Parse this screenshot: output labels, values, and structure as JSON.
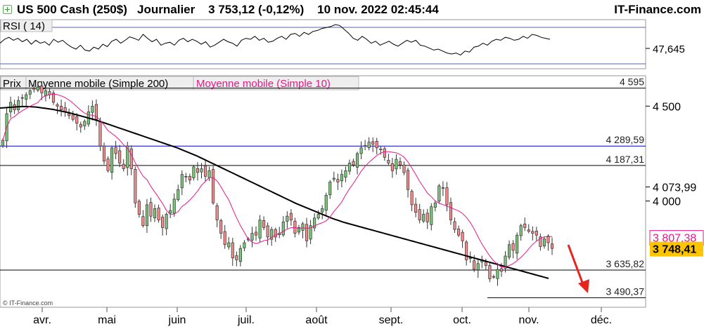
{
  "header": {
    "symbol": "US 500 Cash (250$)",
    "period": "Journalier",
    "quote": "3 753,12 (-0,12%)",
    "datetime": "10 nov. 2022 02:45:44",
    "brand": "IT-Finance.com"
  },
  "rsi": {
    "label": "RSI ( 14)",
    "value_label": "47,645"
  },
  "legend": {
    "price": "Prix",
    "ma200": "Moyenne mobile (Simple 200)",
    "ma10": "Moyenne mobile (Simple 10)"
  },
  "copyright": "© IT-Finance.com",
  "colors": {
    "up": "#7cc47a",
    "down": "#f48a8a",
    "ma10": "#e8178a",
    "ma200": "#000000",
    "resistance": "#0000cc",
    "last_price_bg": "#ffc400",
    "ma10_label_bg": "#ffffff",
    "arrow": "#e8231c"
  },
  "chart_data": {
    "type": "candlestick",
    "title": "US 500 Cash (250$)",
    "xlabel": "",
    "ylabel": "",
    "ylim": [
      3440,
      4660
    ],
    "x_ticks": [
      "avr.",
      "mai",
      "juin",
      "juil.",
      "août",
      "sept.",
      "oct.",
      "nov.",
      "déc."
    ],
    "y_ticks": [
      {
        "value": 4500,
        "label": "4 500"
      },
      {
        "value": 4000,
        "label": "4 000"
      }
    ],
    "levels": [
      {
        "value": 4595,
        "label": "4 595",
        "color": "#000000"
      },
      {
        "value": 4289.59,
        "label": "4 289,59",
        "color": "#0000cc"
      },
      {
        "value": 4187.31,
        "label": "4 187,31",
        "color": "#000000"
      },
      {
        "value": 3635.82,
        "label": "3 635,82",
        "color": "#000000"
      },
      {
        "value": 3490.37,
        "label": "3 490,37",
        "color": "#000000"
      }
    ],
    "value_labels": [
      {
        "value": 4073.99,
        "label": "4 073,99",
        "style": "ma200"
      },
      {
        "value": 3807.38,
        "label": "3 807,38",
        "style": "ma10"
      },
      {
        "value": 3748.41,
        "label": "3 748,41",
        "style": "last"
      }
    ],
    "rsi_values": [
      52,
      60,
      64,
      58,
      62,
      55,
      60,
      50,
      58,
      52,
      55,
      48,
      60,
      54,
      58,
      50,
      44,
      40,
      48,
      38,
      36,
      44,
      40,
      50,
      45,
      56,
      60,
      52,
      58,
      65,
      62,
      58,
      70,
      62,
      55,
      60,
      48,
      52,
      54,
      48,
      58,
      62,
      55,
      60,
      56,
      50,
      55,
      44,
      48,
      54,
      60,
      55,
      52,
      46,
      58,
      62,
      60,
      66,
      58,
      62,
      54,
      56,
      62,
      66,
      60,
      70,
      72,
      66,
      74,
      70,
      76,
      78,
      82,
      84,
      86,
      90,
      88,
      80,
      72,
      62,
      58,
      66,
      60,
      52,
      56,
      48,
      52,
      56,
      50,
      46,
      52,
      58,
      54,
      58,
      48,
      46,
      42,
      38,
      40,
      36,
      32,
      30,
      32,
      28,
      36,
      34,
      44,
      46,
      52,
      48,
      56,
      60,
      58,
      64,
      62,
      58,
      60,
      66,
      62,
      70,
      68,
      64,
      62,
      60
    ],
    "ma200": [
      4490,
      4491,
      4492,
      4493,
      4494,
      4495,
      4496,
      4497,
      4498,
      4498,
      4498,
      4497,
      4496,
      4495,
      4493,
      4491,
      4489,
      4487,
      4485,
      4483,
      4480,
      4477,
      4474,
      4471,
      4468,
      4465,
      4461,
      4457,
      4453,
      4449,
      4445,
      4441,
      4437,
      4433,
      4429,
      4425,
      4420,
      4415,
      4410,
      4405,
      4400,
      4395,
      4390,
      4385,
      4380,
      4375,
      4370,
      4365,
      4360,
      4355,
      4350,
      4345,
      4340,
      4335,
      4330,
      4325,
      4320,
      4315,
      4310,
      4305,
      4300,
      4295,
      4290,
      4285,
      4280,
      4274,
      4268,
      4262,
      4256,
      4250,
      4244,
      4238,
      4231,
      4224,
      4217,
      4210,
      4203,
      4196,
      4189,
      4182,
      4175,
      4168,
      4161,
      4154,
      4147,
      4140,
      4133,
      4126,
      4119,
      4112,
      4105,
      4098,
      4091,
      4084,
      4077,
      4070,
      4063,
      4056,
      4049,
      4042,
      4035,
      4028,
      4021,
      4014,
      4007,
      4000,
      3993,
      3986,
      3980,
      3974,
      3968,
      3962,
      3956,
      3950,
      3944,
      3938,
      3932,
      3926,
      3920,
      3914,
      3908,
      3903,
      3898,
      3893,
      3888,
      3884,
      3880,
      3876,
      3872,
      3868,
      3864,
      3860,
      3856,
      3852,
      3848,
      3844,
      3840,
      3836,
      3832,
      3828,
      3824,
      3820,
      3816,
      3812,
      3808,
      3804,
      3800,
      3796,
      3792,
      3788,
      3784,
      3780,
      3776,
      3772,
      3768,
      3764,
      3760,
      3756,
      3752,
      3748,
      3744,
      3740,
      3736,
      3732,
      3728,
      3724,
      3720,
      3716,
      3712,
      3708,
      3704,
      3700,
      3696,
      3692,
      3688,
      3684,
      3680,
      3676,
      3672,
      3668,
      3664,
      3660,
      3656,
      3652,
      3648,
      3644,
      3640,
      3636,
      3632,
      3628,
      3624,
      3620,
      3616,
      3612,
      3608,
      3604,
      3600,
      3596,
      3592
    ],
    "closes": [
      4320,
      4460,
      4520,
      4480,
      4530,
      4545,
      4560,
      4580,
      4590,
      4600,
      4570,
      4580,
      4560,
      4520,
      4500,
      4480,
      4470,
      4450,
      4430,
      4410,
      4390,
      4420,
      4470,
      4500,
      4430,
      4290,
      4210,
      4160,
      4280,
      4250,
      4200,
      4170,
      4290,
      4170,
      3990,
      3930,
      3870,
      3980,
      3920,
      3960,
      3900,
      3860,
      3930,
      3950,
      4010,
      4060,
      4140,
      4130,
      4110,
      4180,
      4150,
      4170,
      4130,
      4160,
      3990,
      3900,
      3830,
      3770,
      3780,
      3700,
      3690,
      3750,
      3780,
      3800,
      3830,
      3820,
      3900,
      3860,
      3810,
      3850,
      3810,
      3830,
      3890,
      3920,
      3900,
      3830,
      3860,
      3880,
      3790,
      3870,
      3910,
      3930,
      3960,
      4030,
      4100,
      4120,
      4100,
      4140,
      4160,
      4200,
      4190,
      4250,
      4280,
      4290,
      4310,
      4300,
      4280,
      4270,
      4230,
      4200,
      4160,
      4220,
      4190,
      4150,
      4060,
      3980,
      3940,
      3900,
      3930,
      3890,
      3970,
      3990,
      4080,
      4070,
      3980,
      3900,
      3850,
      3820,
      3790,
      3690,
      3700,
      3640,
      3670,
      3690,
      3660,
      3590,
      3600,
      3640,
      3630,
      3710,
      3770,
      3740,
      3820,
      3870,
      3860,
      3840,
      3830,
      3820,
      3760,
      3800,
      3780,
      3750
    ],
    "series": [
      {
        "name": "Prix"
      },
      {
        "name": "Moyenne mobile (Simple 200)"
      },
      {
        "name": "Moyenne mobile (Simple 10)"
      }
    ]
  }
}
